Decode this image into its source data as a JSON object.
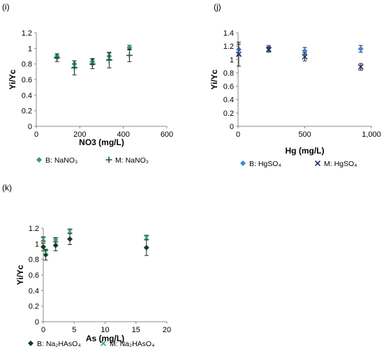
{
  "chart_data": [
    {
      "type": "scatter",
      "panel_label": "(i)",
      "xlabel": "NO3 (mg/L)",
      "ylabel": "Yi/Yc",
      "xlim": [
        0,
        600
      ],
      "ylim": [
        0,
        1.2
      ],
      "xticks": [
        "0",
        "200",
        "400",
        "600"
      ],
      "yticks": [
        "0",
        "0.2",
        "0.4",
        "0.6",
        "0.8",
        "1",
        "1.2"
      ],
      "grid": false,
      "legend_position": "bottom",
      "series": [
        {
          "name": "B: NaNO₃",
          "marker": "diamond",
          "color": "#2e9e7c",
          "x": [
            95,
            175,
            258,
            335,
            428
          ],
          "y": [
            0.9,
            0.8,
            0.83,
            0.9,
            1.01
          ],
          "err": [
            0.03,
            0.04,
            0.04,
            0.04,
            0.03
          ]
        },
        {
          "name": "M: NaNO₃",
          "marker": "plus",
          "color": "#1d5a3d",
          "x": [
            95,
            175,
            258,
            335,
            428
          ],
          "y": [
            0.88,
            0.75,
            0.8,
            0.85,
            0.91
          ],
          "err": [
            0.05,
            0.09,
            0.06,
            0.1,
            0.08
          ]
        }
      ]
    },
    {
      "type": "scatter",
      "panel_label": "(j)",
      "xlabel": "Hg (mg/L)",
      "ylabel": "Yi/Yc",
      "xlim": [
        0,
        1000
      ],
      "ylim": [
        0,
        1.4
      ],
      "xticks": [
        "0",
        "500",
        "1,000"
      ],
      "yticks": [
        "0",
        "0.2",
        "0.4",
        "0.6",
        "0.8",
        "1",
        "1.2",
        "1.4"
      ],
      "grid": false,
      "legend_position": "bottom",
      "series": [
        {
          "name": "B: HgSO₄",
          "marker": "diamond",
          "color": "#3e86d8",
          "x": [
            5,
            230,
            500,
            920
          ],
          "y": [
            1.15,
            1.17,
            1.13,
            1.16
          ],
          "err": [
            0.08,
            0.04,
            0.05,
            0.05
          ]
        },
        {
          "name": "M: HgSO₄",
          "marker": "x",
          "color": "#1f2f6b",
          "x": [
            5,
            230,
            500,
            920
          ],
          "y": [
            1.08,
            1.15,
            1.04,
            0.89
          ],
          "err": [
            0.18,
            0.04,
            0.06,
            0.05
          ]
        }
      ]
    },
    {
      "type": "scatter",
      "panel_label": "(k)",
      "xlabel": "As (mg/L)",
      "ylabel": "Yi/Yc",
      "xlim": [
        0,
        20
      ],
      "ylim": [
        0,
        1.2
      ],
      "xticks": [
        "0",
        "5",
        "10",
        "15",
        "20"
      ],
      "yticks": [
        "0",
        "0.2",
        "0.4",
        "0.6",
        "0.8",
        "1",
        "1.2"
      ],
      "grid": false,
      "legend_position": "bottom",
      "series": [
        {
          "name": "B: Na₂HAsO₄",
          "marker": "diamond",
          "color": "#183d1c",
          "x": [
            0,
            0.4,
            2,
            4.3,
            16.7
          ],
          "y": [
            0.96,
            0.86,
            0.98,
            1.06,
            0.95
          ],
          "err": [
            0.05,
            0.07,
            0.07,
            0.07,
            0.1
          ]
        },
        {
          "name": "M: Na₂HAsO₄",
          "marker": "x",
          "color": "#3aa57f",
          "x": [
            0,
            0.4,
            2,
            4.3,
            16.7
          ],
          "y": [
            1.06,
            0.89,
            1.05,
            1.16,
            1.08
          ],
          "err": [
            0.03,
            0.03,
            0.03,
            0.03,
            0.03
          ]
        }
      ]
    }
  ]
}
